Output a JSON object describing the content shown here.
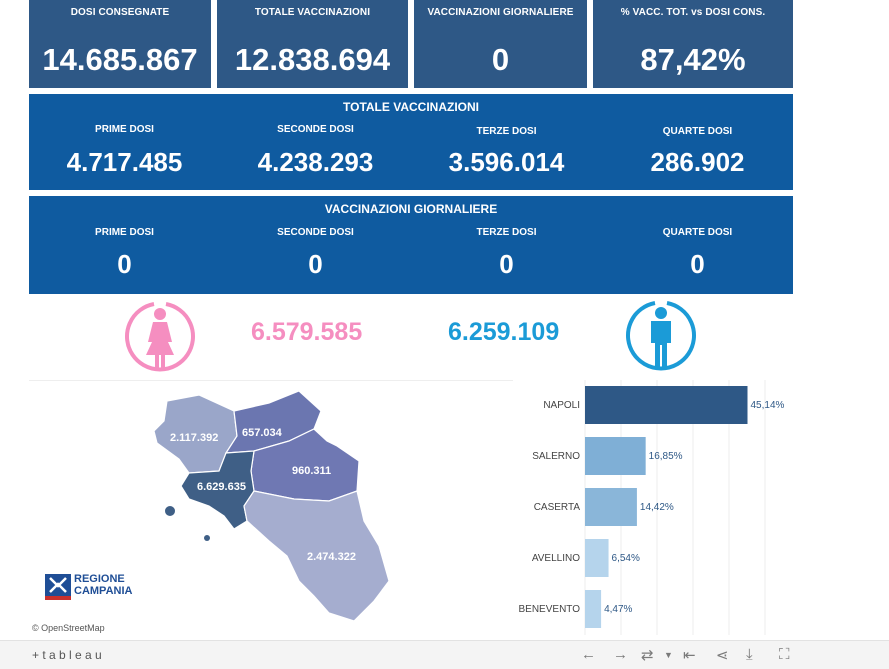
{
  "kpis": [
    {
      "label": "DOSI  CONSEGNATE",
      "value": "14.685.867"
    },
    {
      "label": "TOTALE VACCINAZIONI",
      "value": "12.838.694"
    },
    {
      "label": "VACCINAZIONI GIORNALIERE",
      "value": "0"
    },
    {
      "label": "% VACC. TOT. vs DOSI CONS.",
      "value": "87,42%"
    }
  ],
  "totale": {
    "title": "TOTALE VACCINAZIONI",
    "cols": [
      {
        "label": "PRIME DOSI",
        "value": "4.717.485"
      },
      {
        "label": "SECONDE DOSI",
        "value": "4.238.293"
      },
      {
        "label": "TERZE DOSI",
        "value": "3.596.014"
      },
      {
        "label": "QUARTE DOSI",
        "value": "286.902"
      }
    ]
  },
  "giornaliere": {
    "title": "VACCINAZIONI GIORNALIERE",
    "cols": [
      {
        "label": "PRIME DOSI",
        "value": "0"
      },
      {
        "label": "SECONDE DOSI",
        "value": "0"
      },
      {
        "label": "TERZE DOSI",
        "value": "0"
      },
      {
        "label": "QUARTE DOSI",
        "value": "0"
      }
    ]
  },
  "gender": {
    "female_value": "6.579.585",
    "male_value": "6.259.109",
    "female_color": "#f58ec0",
    "male_color": "#1b9bd7"
  },
  "map": {
    "labels": [
      "2.117.392",
      "657.034",
      "960.311",
      "6.629.635",
      "2.474.322"
    ],
    "logo_line1": "REGIONE",
    "logo_line2": "CAMPANIA",
    "credit": "© OpenStreetMap"
  },
  "chart_data": {
    "type": "bar",
    "orientation": "horizontal",
    "categories": [
      "NAPOLI",
      "SALERNO",
      "CASERTA",
      "AVELLINO",
      "BENEVENTO"
    ],
    "values": [
      45.14,
      16.85,
      14.42,
      6.54,
      4.47
    ],
    "labels": [
      "45,14%",
      "16,85%",
      "14,42%",
      "6,54%",
      "4,47%"
    ],
    "colors": [
      "#2e5886",
      "#7fafd6",
      "#8ab6d9",
      "#b5d4ec",
      "#b5d4ec"
    ],
    "xlim": [
      0,
      50
    ]
  },
  "toolbar": {
    "brand": "+ t a b l e a u"
  }
}
